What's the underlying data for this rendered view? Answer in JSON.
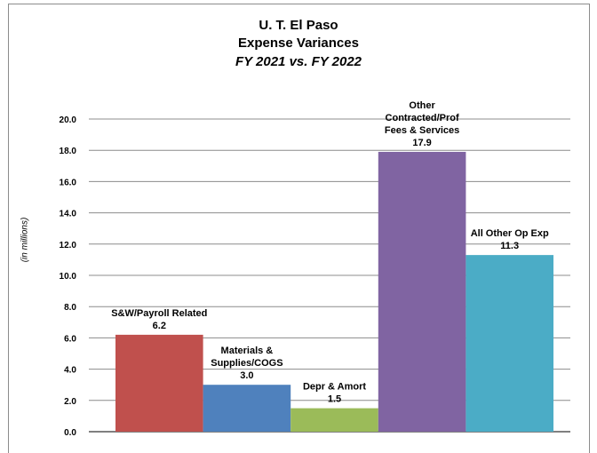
{
  "chart_data": {
    "type": "bar",
    "title": "U. T. El Paso",
    "subtitle": "Expense Variances",
    "subtitle2": "FY 2021 vs. FY 2022",
    "ylabel": "(in  millions)",
    "xlabel": "",
    "ylim": [
      0,
      20
    ],
    "yticks": [
      "0.0",
      "2.0",
      "4.0",
      "6.0",
      "8.0",
      "10.0",
      "12.0",
      "14.0",
      "16.0",
      "18.0",
      "20.0"
    ],
    "grid": true,
    "legend": "none",
    "categories": [
      [
        "S&W/Payroll Related"
      ],
      [
        "Materials &",
        "Supplies/COGS"
      ],
      [
        "Depr & Amort"
      ],
      [
        "Other",
        "Contracted/Prof",
        "Fees & Services"
      ],
      [
        "All Other Op Exp"
      ]
    ],
    "values": [
      6.2,
      3.0,
      1.5,
      17.9,
      11.3
    ],
    "value_labels": [
      "6.2",
      "3.0",
      "1.5",
      "17.9",
      "11.3"
    ],
    "colors": [
      "#c0504d",
      "#4f81bd",
      "#9bbb59",
      "#8064a2",
      "#4bacc6"
    ]
  }
}
